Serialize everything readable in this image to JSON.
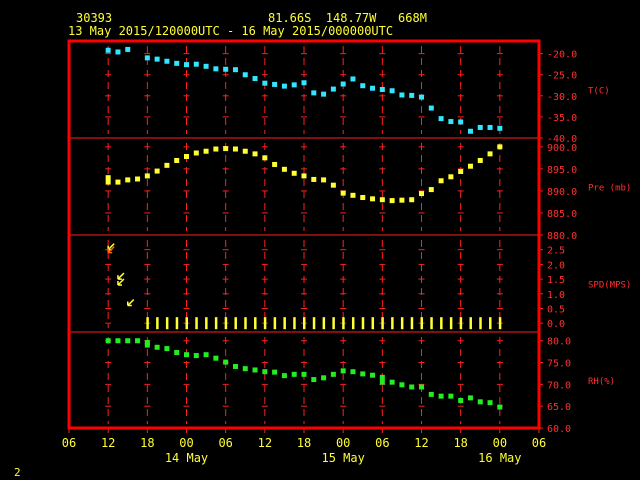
{
  "header": {
    "station_id": "30393",
    "location": "81.66S  148.77W   668M",
    "time_range": "13 May 2015/120000UTC - 16 May 2015/000000UTC"
  },
  "footer_label": "2",
  "colors": {
    "frame": "#ff0000",
    "grid": "#ff2020",
    "text": "#ffff33",
    "temperature": "#33e6ff",
    "pressure": "#ffff33",
    "wind": "#ffff33",
    "wind_calm_arrow": "#ff6600",
    "humidity": "#22ee22"
  },
  "chart_data": {
    "type": "scatter",
    "x_axis": {
      "unit": "hours since 13 May 2015 00 UTC",
      "range": [
        6,
        78
      ],
      "ticks": [
        {
          "x": 6,
          "label": "06"
        },
        {
          "x": 12,
          "label": "12"
        },
        {
          "x": 18,
          "label": "18"
        },
        {
          "x": 24,
          "label": "00"
        },
        {
          "x": 30,
          "label": "06"
        },
        {
          "x": 36,
          "label": "12"
        },
        {
          "x": 42,
          "label": "18"
        },
        {
          "x": 48,
          "label": "00"
        },
        {
          "x": 54,
          "label": "06"
        },
        {
          "x": 60,
          "label": "12"
        },
        {
          "x": 66,
          "label": "18"
        },
        {
          "x": 72,
          "label": "00"
        },
        {
          "x": 78,
          "label": "06"
        }
      ],
      "date_labels": [
        {
          "x": 24,
          "label": "14 May"
        },
        {
          "x": 48,
          "label": "15 May"
        },
        {
          "x": 72,
          "label": "16 May"
        }
      ]
    },
    "panels": [
      {
        "name": "T(C)",
        "range": [
          -40,
          -17
        ],
        "ticks": [
          -20.0,
          -25.0,
          -30.0,
          -35.0,
          -40.0
        ],
        "tick_labels": [
          "-20.0",
          "-25.0",
          "-30.0",
          "-35.0",
          "-40.0"
        ],
        "points": [
          [
            12,
            -19.2
          ],
          [
            13.5,
            -19.6
          ],
          [
            15,
            -19.0
          ],
          [
            18,
            -21.0
          ],
          [
            19.5,
            -21.3
          ],
          [
            21,
            -21.8
          ],
          [
            22.5,
            -22.3
          ],
          [
            24,
            -22.6
          ],
          [
            25.5,
            -22.5
          ],
          [
            27,
            -23.0
          ],
          [
            28.5,
            -23.6
          ],
          [
            30,
            -23.7
          ],
          [
            31.5,
            -23.8
          ],
          [
            33,
            -25.0
          ],
          [
            34.5,
            -25.9
          ],
          [
            36,
            -27.0
          ],
          [
            37.5,
            -27.3
          ],
          [
            39,
            -27.7
          ],
          [
            40.5,
            -27.4
          ],
          [
            42,
            -26.9
          ],
          [
            43.5,
            -29.3
          ],
          [
            45,
            -29.6
          ],
          [
            46.5,
            -28.4
          ],
          [
            48,
            -27.2
          ],
          [
            49.5,
            -26.0
          ],
          [
            51,
            -27.6
          ],
          [
            52.5,
            -28.2
          ],
          [
            54,
            -28.5
          ],
          [
            55.5,
            -28.8
          ],
          [
            57,
            -29.8
          ],
          [
            58.5,
            -29.9
          ],
          [
            60,
            -30.3
          ],
          [
            61.5,
            -32.9
          ],
          [
            63,
            -35.4
          ],
          [
            64.5,
            -36.1
          ],
          [
            66,
            -36.2
          ],
          [
            67.5,
            -38.4
          ],
          [
            69,
            -37.5
          ],
          [
            70.5,
            -37.5
          ],
          [
            72,
            -37.7
          ]
        ]
      },
      {
        "name": "Pre (mb)",
        "range": [
          880,
          902
        ],
        "ticks": [
          900.0,
          895.0,
          890.0,
          885.0,
          880.0
        ],
        "tick_labels": [
          "900.0",
          "895.0",
          "890.0",
          "885.0",
          "880.0"
        ],
        "points": [
          [
            12,
            893.0
          ],
          [
            12,
            892.0
          ],
          [
            13.5,
            892.0
          ],
          [
            15,
            892.5
          ],
          [
            16.5,
            892.7
          ],
          [
            18,
            893.4
          ],
          [
            19.5,
            894.5
          ],
          [
            21,
            895.8
          ],
          [
            22.5,
            896.9
          ],
          [
            24,
            897.8
          ],
          [
            25.5,
            898.6
          ],
          [
            27,
            899.0
          ],
          [
            28.5,
            899.5
          ],
          [
            30,
            899.6
          ],
          [
            31.5,
            899.5
          ],
          [
            33,
            899.0
          ],
          [
            34.5,
            898.4
          ],
          [
            36,
            897.5
          ],
          [
            37.5,
            896.0
          ],
          [
            39,
            894.9
          ],
          [
            40.5,
            894.0
          ],
          [
            42,
            893.4
          ],
          [
            43.5,
            892.6
          ],
          [
            45,
            892.5
          ],
          [
            46.5,
            891.3
          ],
          [
            48,
            889.5
          ],
          [
            49.5,
            889.0
          ],
          [
            51,
            888.5
          ],
          [
            52.5,
            888.2
          ],
          [
            54,
            888.0
          ],
          [
            55.5,
            887.8
          ],
          [
            57,
            887.9
          ],
          [
            58.5,
            888.0
          ],
          [
            60,
            889.4
          ],
          [
            61.5,
            890.3
          ],
          [
            63,
            892.3
          ],
          [
            64.5,
            893.2
          ],
          [
            66,
            894.4
          ],
          [
            67.5,
            895.6
          ],
          [
            69,
            896.9
          ],
          [
            70.5,
            898.4
          ],
          [
            72,
            900.0
          ]
        ]
      },
      {
        "name": "SPD(MPS)",
        "range": [
          -0.3,
          3.0
        ],
        "ticks": [
          3.0,
          2.5,
          2.0,
          1.5,
          1.0,
          0.5,
          0.0
        ],
        "tick_labels": [
          "",
          "2.5",
          "2.0",
          "1.5",
          "1.0",
          "0.5",
          "0.0"
        ],
        "barbs": [
          {
            "x": 12,
            "speed": 2.5,
            "calm": false
          },
          {
            "x": 12,
            "speed": 2.4,
            "calm": true
          },
          {
            "x": 13.5,
            "speed": 1.5,
            "calm": false
          },
          {
            "x": 13.5,
            "speed": 1.3,
            "calm": false
          },
          {
            "x": 15,
            "speed": 0.6,
            "calm": false
          }
        ],
        "calm_x": [
          18,
          19.5,
          21,
          22.5,
          24,
          25.5,
          27,
          28.5,
          30,
          31.5,
          33,
          34.5,
          36,
          37.5,
          39,
          40.5,
          42,
          43.5,
          45,
          46.5,
          48,
          49.5,
          51,
          52.5,
          54,
          55.5,
          57,
          58.5,
          60,
          61.5,
          63,
          64.5,
          66,
          67.5,
          69,
          70.5,
          72
        ]
      },
      {
        "name": "RH(%)",
        "range": [
          60,
          82
        ],
        "ticks": [
          80.0,
          75.0,
          70.0,
          65.0,
          60.0
        ],
        "tick_labels": [
          "80.0",
          "75.0",
          "70.0",
          "65.0",
          "60.0"
        ],
        "points": [
          [
            12,
            80.0
          ],
          [
            13.5,
            80.0
          ],
          [
            15,
            80.0
          ],
          [
            16.5,
            80.0
          ],
          [
            18,
            79.6
          ],
          [
            18,
            79.0
          ],
          [
            19.5,
            78.5
          ],
          [
            21,
            78.2
          ],
          [
            22.5,
            77.3
          ],
          [
            24,
            76.8
          ],
          [
            25.5,
            76.6
          ],
          [
            27,
            76.8
          ],
          [
            28.5,
            76.0
          ],
          [
            30,
            75.1
          ],
          [
            31.5,
            74.1
          ],
          [
            33,
            73.6
          ],
          [
            34.5,
            73.3
          ],
          [
            36,
            72.9
          ],
          [
            37.5,
            72.8
          ],
          [
            39,
            72.0
          ],
          [
            40.5,
            72.3
          ],
          [
            42,
            72.3
          ],
          [
            43.5,
            71.1
          ],
          [
            45,
            71.5
          ],
          [
            46.5,
            72.3
          ],
          [
            48,
            73.1
          ],
          [
            49.5,
            72.9
          ],
          [
            51,
            72.4
          ],
          [
            52.5,
            72.1
          ],
          [
            54,
            71.6
          ],
          [
            54,
            70.5
          ],
          [
            55.5,
            70.5
          ],
          [
            57,
            69.9
          ],
          [
            58.5,
            69.4
          ],
          [
            60,
            69.4
          ],
          [
            61.5,
            67.7
          ],
          [
            63,
            67.3
          ],
          [
            64.5,
            67.3
          ],
          [
            66,
            66.3
          ],
          [
            67.5,
            66.9
          ],
          [
            69,
            66.0
          ],
          [
            70.5,
            65.8
          ],
          [
            72,
            64.8
          ]
        ]
      }
    ]
  }
}
